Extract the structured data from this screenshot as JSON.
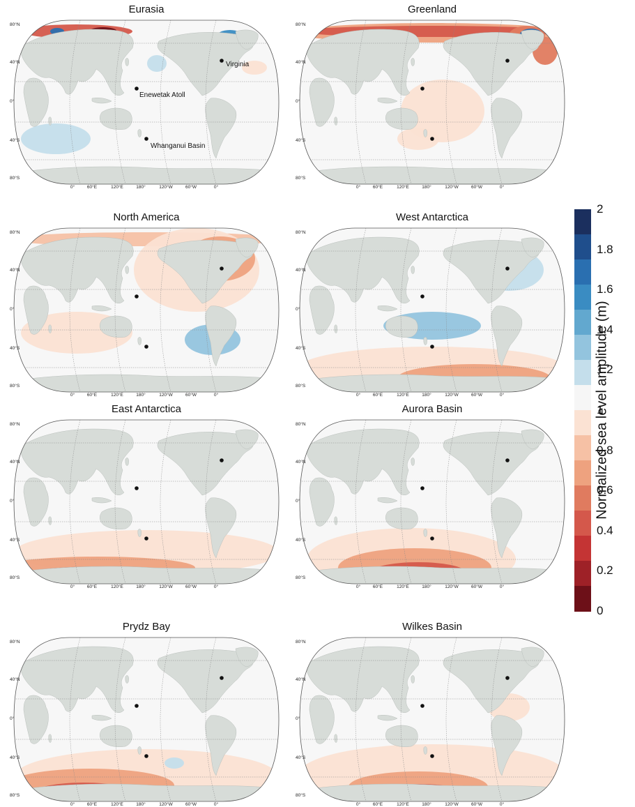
{
  "panels": [
    {
      "title": "Eurasia",
      "site_labels": {
        "virginia": "Virginia",
        "enewetak": "Enewetak Atoll",
        "whanganui": "Whanganui Basin"
      }
    },
    {
      "title": "Greenland"
    },
    {
      "title": "North America"
    },
    {
      "title": "West Antarctica"
    },
    {
      "title": "East Antarctica"
    },
    {
      "title": "Aurora Basin"
    },
    {
      "title": "Prydz Bay"
    },
    {
      "title": "Wilkes Basin"
    }
  ],
  "lat_labels": [
    "80°N",
    "40°N",
    "0°",
    "40°S",
    "80°S"
  ],
  "lon_labels": [
    "0°",
    "60°E",
    "120°E",
    "180°",
    "120°W",
    "60°W",
    "0°"
  ],
  "colorbar": {
    "title": "Normalized sea level amplitude (m)",
    "ticks": [
      "2",
      "1.8",
      "1.6",
      "1.4",
      "1.2",
      "1",
      "0.8",
      "0.6",
      "0.4",
      "0.2",
      "0"
    ],
    "colors": [
      "#1b2f5e",
      "#1f4e8c",
      "#2a6fb0",
      "#3a8cc2",
      "#62a8cf",
      "#93c4de",
      "#c4deeb",
      "#f6f6f6",
      "#fbe2d3",
      "#f6c1a5",
      "#eea27f",
      "#e07b5f",
      "#d4584b",
      "#c43434",
      "#9e2127",
      "#6d1018"
    ]
  },
  "legend_colors": {
    "land": "#d7dcd8",
    "ocean": "#f7f7f7"
  }
}
